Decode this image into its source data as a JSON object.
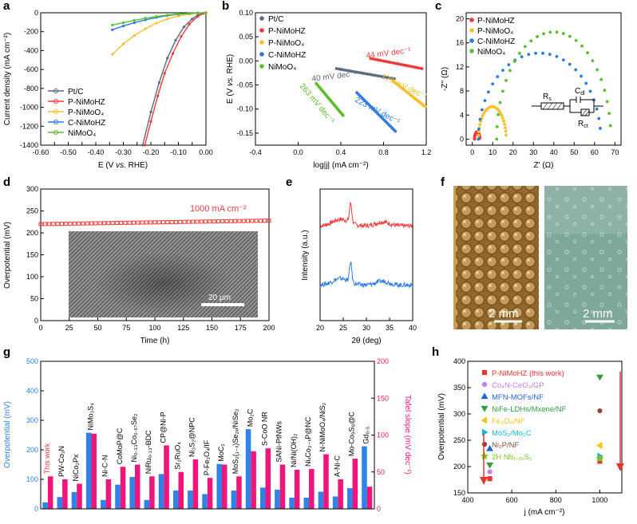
{
  "colors": {
    "ptc": "#5a6a80",
    "p_nimohz": "#ef3a3a",
    "p_nimoo4": "#f7c12a",
    "c_nimohz": "#2b7be4",
    "nimoo4": "#59bf2a",
    "bar_blue": "#2f82e8",
    "bar_pink": "#f0157a"
  },
  "panels": {
    "a": "a",
    "b": "b",
    "c": "c",
    "d": "d",
    "e": "e",
    "f": "f",
    "g": "g",
    "h": "h"
  },
  "chart_data": [
    {
      "panel": "a",
      "type": "line",
      "xlabel_parts": [
        "E (V ",
        "vs.",
        " RHE)"
      ],
      "ylabel": "Current density (mA cm⁻²)",
      "xlim": [
        -0.6,
        0.0
      ],
      "ylim": [
        -1400,
        0
      ],
      "xticks": [
        "-0.60",
        "-0.55",
        "-0.50",
        "-0.45",
        "-0.40",
        "-0.35",
        "-0.30",
        "-0.25",
        "-0.20",
        "-0.15",
        "-0.10",
        "-0.05",
        "0.00"
      ],
      "xtick_values": [
        -0.6,
        -0.55,
        -0.5,
        -0.45,
        -0.4,
        -0.35,
        -0.3,
        -0.25,
        -0.2,
        -0.15,
        -0.1,
        -0.05,
        0.0
      ],
      "yticks": [
        "0",
        "-200",
        "-400",
        "-600",
        "-800",
        "-1000",
        "-1200",
        "-1400"
      ],
      "ytick_values": [
        0,
        -200,
        -400,
        -600,
        -800,
        -1000,
        -1200,
        -1400
      ],
      "legend": [
        "Pt/C",
        "P-NiMoHZ",
        "P-NiMoO₄",
        "C-NiMoHZ",
        "NiMoO₄"
      ],
      "series": [
        {
          "name": "Pt/C",
          "color": "ptc",
          "x": [
            -0.23,
            -0.2,
            -0.17,
            -0.14,
            -0.11,
            -0.08,
            -0.05,
            -0.03,
            -0.01,
            0.0
          ],
          "y": [
            -1400,
            -1050,
            -740,
            -480,
            -290,
            -150,
            -65,
            -25,
            -6,
            0
          ]
        },
        {
          "name": "P-NiMoHZ",
          "color": "p_nimohz",
          "x": [
            -0.222,
            -0.2,
            -0.175,
            -0.15,
            -0.12,
            -0.09,
            -0.06,
            -0.03,
            -0.01,
            0.0
          ],
          "y": [
            -1400,
            -1150,
            -880,
            -640,
            -430,
            -250,
            -120,
            -40,
            -8,
            0
          ]
        },
        {
          "name": "P-NiMoO₄",
          "color": "p_nimoo4",
          "x": [
            -0.34,
            -0.3,
            -0.26,
            -0.22,
            -0.18,
            -0.14,
            -0.1,
            -0.06,
            -0.03,
            0.0
          ],
          "y": [
            -440,
            -330,
            -240,
            -170,
            -110,
            -65,
            -35,
            -14,
            -4,
            0
          ]
        },
        {
          "name": "C-NiMoHZ",
          "color": "c_nimohz",
          "x": [
            -0.34,
            -0.3,
            -0.26,
            -0.22,
            -0.18,
            -0.14,
            -0.1,
            -0.06,
            -0.03,
            0.0
          ],
          "y": [
            -180,
            -140,
            -105,
            -75,
            -50,
            -30,
            -16,
            -7,
            -2,
            0
          ]
        },
        {
          "name": "NiMoO₄",
          "color": "nimoo4",
          "x": [
            -0.34,
            -0.3,
            -0.26,
            -0.22,
            -0.18,
            -0.14,
            -0.1,
            -0.06,
            -0.03,
            0.0
          ],
          "y": [
            -130,
            -105,
            -80,
            -58,
            -40,
            -25,
            -13,
            -6,
            -2,
            0
          ]
        }
      ]
    },
    {
      "panel": "b",
      "type": "line",
      "xlabel": "log|j| (mA cm⁻²)",
      "ylabel_parts": [
        "E (V ",
        "vs.",
        " RHE)"
      ],
      "xlim": [
        -0.4,
        1.2
      ],
      "ylim": [
        -0.175,
        0.1
      ],
      "xticks": [
        "-0.4",
        "0.0",
        "0.4",
        "0.8",
        "1.2"
      ],
      "xtick_values": [
        -0.4,
        0.0,
        0.4,
        0.8,
        1.2
      ],
      "yticks": [
        "0.10",
        "0.05",
        "0.00",
        "-0.05",
        "-0.10",
        "-0.15"
      ],
      "ytick_values": [
        0.1,
        0.05,
        0.0,
        -0.05,
        -0.1,
        -0.15
      ],
      "legend": [
        "Pt/C",
        "P-NiMoHZ",
        "P-NiMoO₄",
        "C-NiMoHZ",
        "NiMoO₄"
      ],
      "series": [
        {
          "name": "Pt/C",
          "color": "ptc",
          "x": [
            0.36,
            0.9
          ],
          "y": [
            -0.016,
            -0.037
          ]
        },
        {
          "name": "P-NiMoHZ",
          "color": "p_nimohz",
          "x": [
            0.68,
            1.16
          ],
          "y": [
            0.005,
            -0.016
          ]
        },
        {
          "name": "P-NiMoO₄",
          "color": "p_nimoo4",
          "x": [
            0.89,
            1.19
          ],
          "y": [
            -0.042,
            -0.095
          ]
        },
        {
          "name": "C-NiMoHZ",
          "color": "c_nimohz",
          "x": [
            0.55,
            0.91
          ],
          "y": [
            -0.066,
            -0.146
          ]
        },
        {
          "name": "NiMoO₄",
          "color": "nimoo4",
          "x": [
            0.17,
            0.42
          ],
          "y": [
            -0.047,
            -0.113
          ]
        }
      ],
      "annotations": [
        {
          "text": "44 mV dec⁻¹",
          "color": "p_nimohz"
        },
        {
          "text": "40 mV dec⁻¹",
          "color": "ptc"
        },
        {
          "text": "176 mV dec⁻¹",
          "color": "p_nimoo4"
        },
        {
          "text": "223 mV dec⁻¹",
          "color": "c_nimohz"
        },
        {
          "text": "263 mV dec⁻¹",
          "color": "nimoo4"
        }
      ]
    },
    {
      "panel": "c",
      "type": "scatter",
      "xlabel": "Z' (Ω)",
      "ylabel": "-Z'' (Ω)",
      "xlim": [
        -3,
        73
      ],
      "ylim": [
        -1,
        21
      ],
      "xticks": [
        "0",
        "10",
        "20",
        "30",
        "40",
        "50",
        "60",
        "70"
      ],
      "xtick_values": [
        0,
        10,
        20,
        30,
        40,
        50,
        60,
        70
      ],
      "yticks": [
        "0",
        "4",
        "8",
        "12",
        "16",
        "20"
      ],
      "ytick_values": [
        0,
        4,
        8,
        12,
        16,
        20
      ],
      "legend": [
        "P-NiMoHZ",
        "P-NiMoO₄",
        "C-NiMoHZ",
        "NiMoO₄"
      ],
      "series": [
        {
          "name": "P-NiMoHZ",
          "color": "p_nimohz",
          "center": 2.4,
          "radius": 1.3,
          "peak": 1.2
        },
        {
          "name": "P-NiMoO₄",
          "color": "p_nimoo4",
          "center": 9.8,
          "radius": 6.8,
          "peak": 5.4
        },
        {
          "name": "C-NiMoHZ",
          "color": "c_nimohz",
          "center": 33,
          "radius": 30,
          "peak": 14.3
        },
        {
          "name": "NiMoO₄",
          "color": "nimoo4",
          "center": 40,
          "radius": 28,
          "peak": 17.8
        }
      ],
      "circuit": {
        "rs": "R",
        "rs_sub": "s",
        "cdl": "C",
        "cdl_sub": "dl",
        "rct": "R",
        "rct_sub": "ct"
      }
    },
    {
      "panel": "d",
      "type": "scatter",
      "xlabel": "Time (h)",
      "ylabel": "Overpotential (mV)",
      "xlim": [
        0,
        200
      ],
      "ylim": [
        0,
        300
      ],
      "xticks": [
        "0",
        "25",
        "50",
        "75",
        "100",
        "125",
        "150",
        "175",
        "200"
      ],
      "xtick_values": [
        0,
        25,
        50,
        75,
        100,
        125,
        150,
        175,
        200
      ],
      "yticks": [
        "0",
        "50",
        "100",
        "150",
        "200",
        "250",
        "300"
      ],
      "ytick_values": [
        0,
        50,
        100,
        150,
        200,
        250,
        300
      ],
      "series": [
        {
          "name": "1000 mA cm⁻²",
          "color": "p_nimohz",
          "start_value": 220,
          "end_value": 228
        }
      ],
      "annotation": "1000 mA cm⁻²",
      "inset_scale": "20 μm"
    },
    {
      "panel": "e",
      "type": "line",
      "xlabel": "2θ (deg)",
      "ylabel": "Intensity (a.u.)",
      "xlim": [
        20,
        40
      ],
      "xticks": [
        "20",
        "25",
        "30",
        "35",
        "40"
      ],
      "xtick_values": [
        20,
        25,
        30,
        35,
        40
      ],
      "series": [
        {
          "name": "top",
          "color": "p_nimohz",
          "peak_x": 26.6,
          "baseline": 0.72,
          "peak": 0.87
        },
        {
          "name": "bottom",
          "color": "c_nimohz",
          "peak_x": 26.6,
          "baseline": 0.27,
          "peak": 0.42
        }
      ]
    },
    {
      "panel": "g",
      "type": "bar",
      "ylabel_left": "Overpotential (mV)",
      "ylabel_right": "Tafel slope (mV dec⁻¹)",
      "ylim_left": [
        0,
        500
      ],
      "ylim_right": [
        0,
        200
      ],
      "yticks_left": [
        "0",
        "100",
        "200",
        "300",
        "400",
        "500"
      ],
      "yticks_left_values": [
        0,
        100,
        200,
        300,
        400,
        500
      ],
      "yticks_right": [
        "0",
        "50",
        "100",
        "150",
        "200"
      ],
      "yticks_right_values": [
        0,
        50,
        100,
        150,
        200
      ],
      "series": [
        {
          "name": "Overpotential",
          "color": "bar_blue",
          "axis": "left",
          "values": [
            22,
            40,
            57,
            258,
            30,
            82,
            108,
            30,
            118,
            62,
            62,
            50,
            152,
            62,
            270,
            72,
            65,
            38,
            38,
            58,
            42,
            70,
            212
          ]
        },
        {
          "name": "Tafel slope",
          "color": "bar_pink",
          "axis": "right",
          "values": [
            44,
            40,
            34,
            102,
            40,
            57,
            60,
            44,
            86,
            50,
            67,
            42,
            60,
            44,
            78,
            82,
            60,
            53,
            54,
            74,
            40,
            68,
            30
          ]
        }
      ],
      "categories": [
        "This work",
        "PW-Co₃N",
        "NiCo₂Px",
        "NiMo₃S₄",
        "Ni-C-N",
        "CoMoP@C",
        "Ni₀.₃₃Co₀.₆₇Se₂",
        "NiRu₀.₁₃-BDC",
        "CP@Ni-P",
        "Sr₂RuO₄",
        "Ni₃S₂@NPC",
        "P-Fe₃O₄/IF",
        "MoC₂",
        "MoS₂(₁₋ₓ)Se₂ₓ/NiSe₂",
        "Mo₂C",
        "S-CoO NR",
        "SANi-PtNWs",
        "Ni/Ni(OH)₂",
        "NiₓCo₃₋ₓP@NC",
        "N-NiMoO₄/NiS₂",
        "A-Ni-C",
        "Mo-Co₉S₈@C",
        "Gd₀.₅"
      ]
    },
    {
      "panel": "h",
      "type": "scatter",
      "xlabel": "j (mA cm⁻²)",
      "ylabel": "Overpotential (mV)",
      "xlim": [
        400,
        1100
      ],
      "ylim": [
        150,
        400
      ],
      "xticks": [
        "400",
        "600",
        "800",
        "1000"
      ],
      "xtick_values": [
        400,
        600,
        800,
        1000
      ],
      "yticks": [
        "150",
        "200",
        "250",
        "300",
        "350",
        "400"
      ],
      "ytick_values": [
        150,
        200,
        250,
        300,
        350,
        400
      ],
      "series": [
        {
          "name": "P-NiMoHZ (this work)",
          "color": "#e8332f",
          "marker": "square",
          "points": [
            [
              500,
              177
            ],
            [
              1000,
              210
            ]
          ]
        },
        {
          "name": "Co₄N-CeO₂/GP",
          "color": "#c77ee6",
          "marker": "circle",
          "points": [
            [
              500,
              190
            ]
          ]
        },
        {
          "name": "MFN-MOFs/NF",
          "color": "#1f63e0",
          "marker": "triangle-up",
          "points": [
            [
              500,
              234
            ]
          ]
        },
        {
          "name": "NiFe-LDHs/Mxene/NF",
          "color": "#2e9e3e",
          "marker": "triangle-down",
          "points": [
            [
              500,
              203
            ],
            [
              1000,
              370
            ]
          ]
        },
        {
          "name": "Fe₃O₄/NF",
          "color": "#f5c518",
          "marker": "triangle-left",
          "points": [
            [
              1000,
              240
            ]
          ]
        },
        {
          "name": "MoS₂/Mo₂C",
          "color": "#19b8c8",
          "marker": "triangle-right",
          "points": [
            [
              1000,
              220
            ]
          ]
        },
        {
          "name": "Ni₂P/NF",
          "color": "#8a4a3c",
          "marker": "circle",
          "points": [
            [
              1000,
              306
            ]
          ]
        },
        {
          "name": "2H Nb₁.₃₅S₂",
          "color": "#7cc818",
          "marker": "star",
          "points": [
            [
              1000,
              215
            ]
          ]
        }
      ],
      "legend": [
        "P-NiMoHZ (this work)",
        "Co₄N-CeO₂/GP",
        "MFN-MOFs/NF",
        "NiFe-LDHs/Mxene/NF",
        "Fe₃O₄/NF",
        "MoS₂/Mo₂C",
        "Ni₂P/NF",
        "2H Nb₁.₃₅S₂"
      ]
    }
  ],
  "photos": {
    "f_scale_left": "2 mm",
    "f_scale_right": "2 mm"
  }
}
